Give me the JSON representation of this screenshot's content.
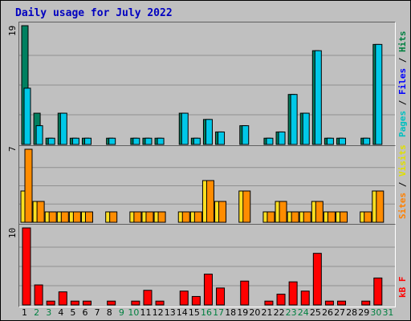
{
  "chart_data": [
    {
      "type": "bar",
      "title": "Daily usage for July 2022",
      "panel": "hits-files-pages",
      "ymax_label": "19",
      "ylim": [
        0,
        19
      ],
      "grid": true,
      "categories": [
        "1",
        "2",
        "3",
        "4",
        "5",
        "6",
        "7",
        "8",
        "9",
        "10",
        "11",
        "12",
        "13",
        "14",
        "15",
        "16",
        "17",
        "18",
        "19",
        "20",
        "21",
        "22",
        "23",
        "24",
        "25",
        "26",
        "27",
        "28",
        "29",
        "30",
        "31"
      ],
      "legend": [
        {
          "name": "Pages",
          "color": "#00c0c0"
        },
        {
          "name": "Files",
          "color": "#0000ff"
        },
        {
          "name": "Hits",
          "color": "#008040"
        }
      ],
      "series": [
        {
          "name": "Hits",
          "color": "#008060",
          "values": [
            19,
            5,
            1,
            5,
            1,
            1,
            0,
            1,
            0,
            1,
            1,
            1,
            0,
            5,
            1,
            4,
            2,
            0,
            3,
            0,
            1,
            2,
            8,
            5,
            15,
            1,
            1,
            0,
            1,
            16,
            0
          ]
        },
        {
          "name": "Files",
          "color": "#00c8e8",
          "values": [
            9,
            3,
            1,
            5,
            1,
            1,
            0,
            1,
            0,
            1,
            1,
            1,
            0,
            5,
            1,
            4,
            2,
            0,
            3,
            0,
            1,
            2,
            8,
            5,
            15,
            1,
            1,
            0,
            1,
            16,
            0
          ]
        },
        {
          "name": "Pages",
          "color": "#00c0c0",
          "values": [
            0,
            0,
            0,
            0,
            0,
            0,
            0,
            0,
            0,
            0,
            0,
            0,
            0,
            0,
            0,
            0,
            0,
            0,
            0,
            0,
            0,
            0,
            0,
            0,
            0,
            0,
            0,
            0,
            0,
            0,
            0
          ]
        }
      ]
    },
    {
      "type": "bar",
      "panel": "visits-sites",
      "ymax_label": "7",
      "ylim": [
        0,
        7
      ],
      "grid": true,
      "legend": [
        {
          "name": "Sites",
          "color": "#ff8000"
        },
        {
          "name": "Visits",
          "color": "#ffff00"
        }
      ],
      "series": [
        {
          "name": "Visits",
          "color": "#ffe020",
          "values": [
            3,
            2,
            1,
            1,
            1,
            1,
            0,
            1,
            0,
            1,
            1,
            1,
            0,
            1,
            1,
            4,
            2,
            0,
            3,
            0,
            1,
            2,
            1,
            1,
            2,
            1,
            1,
            0,
            1,
            3,
            0
          ]
        },
        {
          "name": "Sites",
          "color": "#ff8c00",
          "values": [
            7,
            2,
            1,
            1,
            1,
            1,
            0,
            1,
            0,
            1,
            1,
            1,
            0,
            1,
            1,
            4,
            2,
            0,
            3,
            0,
            1,
            2,
            1,
            1,
            2,
            1,
            1,
            0,
            1,
            3,
            0
          ]
        }
      ]
    },
    {
      "type": "bar",
      "panel": "kbytes",
      "ymax_label": "10",
      "ylim": [
        0,
        10
      ],
      "grid": true,
      "legend": [
        {
          "name": "kB F",
          "color": "#ff0000"
        }
      ],
      "series": [
        {
          "name": "kB F",
          "color": "#ff0000",
          "values": [
            10,
            2.6,
            0.5,
            1.7,
            0.5,
            0.5,
            0,
            0.5,
            0,
            0.5,
            1.9,
            0.5,
            0,
            1.8,
            1.1,
            4.0,
            2.2,
            0,
            3.1,
            0,
            0.5,
            1.4,
            3.0,
            1.8,
            6.7,
            0.5,
            0.5,
            0,
            0.5,
            3.5,
            0
          ]
        }
      ]
    }
  ],
  "x_label_colors": {
    "weekday": "#000000",
    "weekend": "#008040"
  },
  "weekend_days": [
    "2",
    "3",
    "9",
    "10",
    "16",
    "17",
    "23",
    "24",
    "30",
    "31"
  ],
  "colors": {
    "background": "#c0c0c0",
    "title": "#0000c0",
    "grid": "#909090",
    "bar_outline": "#000000"
  }
}
